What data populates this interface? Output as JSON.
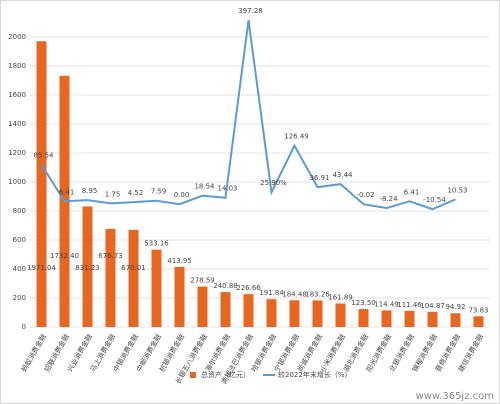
{
  "chart_data": {
    "type": "bar-line",
    "categories": [
      "蚂蚁消费金融",
      "招联消费金融",
      "兴业消费金融",
      "马上消费金融",
      "中银消费金融",
      "中邮消费金融",
      "杭银消费金融",
      "长银五八消费金融",
      "海尔消费金融",
      "南银法巴消费金融",
      "哈银消费金融",
      "宁银消费金融",
      "尚诚消费金融",
      "小米消费金融",
      "湖北消费金融",
      "阳光消费金融",
      "北银消费金融",
      "锦程消费金融",
      "晋商消费金融",
      "建信消费金融"
    ],
    "series": [
      {
        "name": "总资产（亿元）",
        "type": "bar",
        "color": "#e8661f",
        "values": [
          1971.04,
          1732.4,
          831.23,
          676.73,
          670.01,
          533.16,
          413.95,
          278.59,
          240.88,
          226.66,
          191.84,
          184.48,
          183.26,
          161.89,
          123.5,
          114.49,
          111.46,
          104.87,
          94.92,
          73.83
        ],
        "value_labels": [
          "1971.04",
          "1732.40",
          "831.23",
          "676.73",
          "670.01",
          "533.16",
          "413.95",
          "278.59",
          "240.88",
          "226.66",
          "191.84",
          "184.48",
          "183.26",
          "161.89",
          "123.50",
          "114.49",
          "111.46",
          "104.87",
          "94.92",
          "73.83"
        ]
      },
      {
        "name": "较2022年末增长（%）",
        "type": "line",
        "axis": "y2",
        "color": "#5b9bd5",
        "values": [
          85.54,
          6.41,
          8.95,
          1.75,
          4.52,
          7.59,
          0,
          18.54,
          14.03,
          397.28,
          25.9,
          126.49,
          36.91,
          43.44,
          -0.02,
          -8.24,
          6.41,
          -10.54,
          10.53,
          null
        ],
        "value_labels": [
          "85.54",
          "6.41",
          "8.95",
          "1.75",
          "4.52",
          "7.59",
          "0.00",
          "18.54",
          "14.03",
          "397.28",
          "25.90%",
          "126.49",
          "36.91",
          "43.44",
          "-0.02",
          "-8.24",
          "6.41",
          "-10.54",
          "10.53",
          null
        ]
      }
    ],
    "ylim": [
      0,
      2000
    ],
    "yticks": [
      0,
      200,
      400,
      600,
      800,
      1000,
      1200,
      1400,
      1600,
      1800,
      2000
    ],
    "y2lim": [
      -265,
      361
    ],
    "grid": true,
    "legend": "bottom",
    "watermark": "www.365jz.com"
  }
}
